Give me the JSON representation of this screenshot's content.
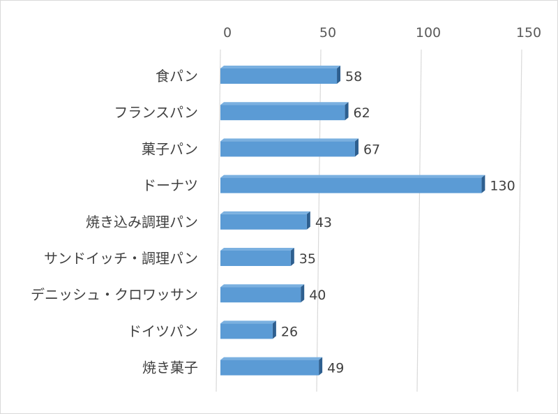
{
  "chart_data": {
    "type": "bar",
    "orientation": "horizontal",
    "title": "",
    "xlabel": "",
    "ylabel": "",
    "categories": [
      "食パン",
      "フランスパン",
      "菓子パン",
      "ドーナツ",
      "焼き込み調理パン",
      "サンドイッチ・調理パン",
      "デニッシュ・クロワッサン",
      "ドイツパン",
      "焼き菓子"
    ],
    "series": [
      {
        "values": [
          58,
          62,
          67,
          130,
          43,
          35,
          40,
          26,
          49
        ]
      }
    ],
    "xlim": [
      0,
      150
    ],
    "x_ticks": [
      "0",
      "50",
      "100",
      "150"
    ],
    "grid": true,
    "data_labels": true,
    "legend": "none",
    "colors": {
      "bar_front": "#5b9bd5",
      "bar_top": "#7ab0e0",
      "bar_side": "#2e5f8f",
      "grid": "#d9d9d9"
    }
  }
}
